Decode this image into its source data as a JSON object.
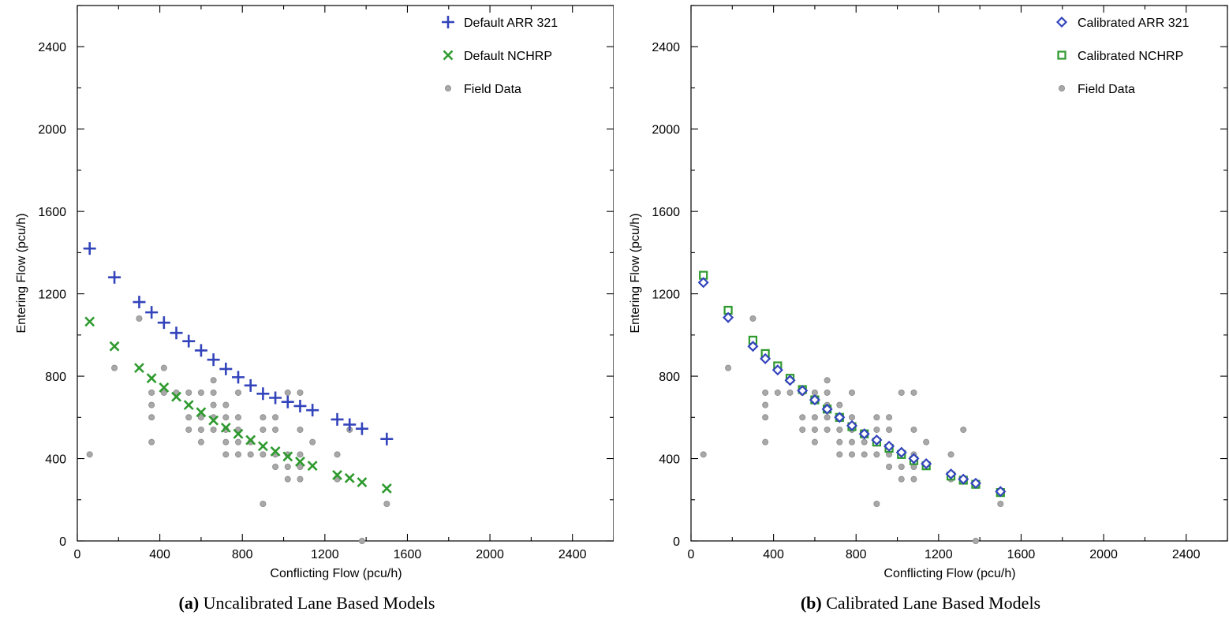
{
  "chart_data": [
    {
      "type": "scatter",
      "xlabel": "Conflicting Flow (pcu/h)",
      "ylabel": "Entering Flow (pcu/h)",
      "xlim": [
        0,
        2600
      ],
      "ylim": [
        0,
        2600
      ],
      "xticks": [
        "0",
        "400",
        "800",
        "1200",
        "1600",
        "2000",
        "2400"
      ],
      "yticks": [
        "0",
        "400",
        "800",
        "1200",
        "1600",
        "2000",
        "2400"
      ],
      "caption_label": "(a)",
      "caption_text": "Uncalibrated Lane Based Models",
      "legend_position": "top-right",
      "series": [
        {
          "name": "Default ARR 321",
          "marker": "plus",
          "color": "#3344bb",
          "points": [
            [
              60,
              1420
            ],
            [
              180,
              1280
            ],
            [
              300,
              1160
            ],
            [
              360,
              1110
            ],
            [
              420,
              1060
            ],
            [
              480,
              1010
            ],
            [
              540,
              970
            ],
            [
              600,
              925
            ],
            [
              660,
              880
            ],
            [
              720,
              835
            ],
            [
              780,
              795
            ],
            [
              840,
              755
            ],
            [
              900,
              715
            ],
            [
              960,
              695
            ],
            [
              1020,
              675
            ],
            [
              1080,
              655
            ],
            [
              1140,
              635
            ],
            [
              1260,
              590
            ],
            [
              1320,
              565
            ],
            [
              1380,
              545
            ],
            [
              1500,
              495
            ]
          ]
        },
        {
          "name": "Default NCHRP",
          "marker": "x",
          "color": "#2e9a2e",
          "points": [
            [
              60,
              1065
            ],
            [
              180,
              945
            ],
            [
              300,
              840
            ],
            [
              360,
              790
            ],
            [
              420,
              745
            ],
            [
              480,
              700
            ],
            [
              540,
              660
            ],
            [
              600,
              625
            ],
            [
              660,
              585
            ],
            [
              720,
              550
            ],
            [
              780,
              520
            ],
            [
              840,
              490
            ],
            [
              900,
              460
            ],
            [
              960,
              435
            ],
            [
              1020,
              410
            ],
            [
              1080,
              385
            ],
            [
              1140,
              365
            ],
            [
              1260,
              320
            ],
            [
              1320,
              305
            ],
            [
              1380,
              285
            ],
            [
              1500,
              255
            ]
          ]
        },
        {
          "name": "Field Data",
          "marker": "circle",
          "color": "#9e9e9e",
          "points": [
            [
              60,
              420
            ],
            [
              180,
              840
            ],
            [
              300,
              1080
            ],
            [
              360,
              720
            ],
            [
              360,
              660
            ],
            [
              360,
              600
            ],
            [
              360,
              480
            ],
            [
              420,
              840
            ],
            [
              420,
              720
            ],
            [
              480,
              720
            ],
            [
              540,
              720
            ],
            [
              540,
              600
            ],
            [
              540,
              540
            ],
            [
              600,
              720
            ],
            [
              600,
              600
            ],
            [
              600,
              540
            ],
            [
              600,
              480
            ],
            [
              660,
              780
            ],
            [
              660,
              720
            ],
            [
              660,
              660
            ],
            [
              660,
              600
            ],
            [
              660,
              540
            ],
            [
              720,
              660
            ],
            [
              720,
              600
            ],
            [
              720,
              540
            ],
            [
              720,
              480
            ],
            [
              720,
              420
            ],
            [
              780,
              720
            ],
            [
              780,
              600
            ],
            [
              780,
              540
            ],
            [
              780,
              480
            ],
            [
              780,
              420
            ],
            [
              840,
              480
            ],
            [
              840,
              420
            ],
            [
              900,
              600
            ],
            [
              900,
              540
            ],
            [
              900,
              420
            ],
            [
              900,
              180
            ],
            [
              960,
              600
            ],
            [
              960,
              540
            ],
            [
              960,
              420
            ],
            [
              960,
              360
            ],
            [
              1020,
              720
            ],
            [
              1020,
              420
            ],
            [
              1020,
              360
            ],
            [
              1020,
              300
            ],
            [
              1080,
              720
            ],
            [
              1080,
              540
            ],
            [
              1080,
              420
            ],
            [
              1080,
              360
            ],
            [
              1080,
              300
            ],
            [
              1140,
              480
            ],
            [
              1260,
              420
            ],
            [
              1260,
              300
            ],
            [
              1320,
              540
            ],
            [
              1380,
              0
            ],
            [
              1500,
              180
            ]
          ]
        }
      ]
    },
    {
      "type": "scatter",
      "xlabel": "Conflicting Flow (pcu/h)",
      "ylabel": "Entering Flow  (pcu/h)",
      "xlim": [
        0,
        2600
      ],
      "ylim": [
        0,
        2600
      ],
      "xticks": [
        "0",
        "400",
        "800",
        "1200",
        "1600",
        "2000",
        "2400"
      ],
      "yticks": [
        "0",
        "400",
        "800",
        "1200",
        "1600",
        "2000",
        "2400"
      ],
      "caption_label": "(b)",
      "caption_text": "Calibrated Lane Based Models",
      "legend_position": "top-right",
      "series": [
        {
          "name": "Calibrated ARR 321",
          "marker": "diamond",
          "color": "#3344bb",
          "points": [
            [
              60,
              1255
            ],
            [
              180,
              1085
            ],
            [
              300,
              945
            ],
            [
              360,
              885
            ],
            [
              420,
              830
            ],
            [
              480,
              780
            ],
            [
              540,
              730
            ],
            [
              600,
              685
            ],
            [
              660,
              640
            ],
            [
              720,
              600
            ],
            [
              780,
              560
            ],
            [
              840,
              520
            ],
            [
              900,
              490
            ],
            [
              960,
              460
            ],
            [
              1020,
              430
            ],
            [
              1080,
              400
            ],
            [
              1140,
              375
            ],
            [
              1260,
              325
            ],
            [
              1320,
              300
            ],
            [
              1380,
              280
            ],
            [
              1500,
              240
            ]
          ]
        },
        {
          "name": "Calibrated NCHRP",
          "marker": "square",
          "color": "#2e9a2e",
          "points": [
            [
              60,
              1290
            ],
            [
              180,
              1120
            ],
            [
              300,
              975
            ],
            [
              360,
              910
            ],
            [
              420,
              850
            ],
            [
              480,
              790
            ],
            [
              540,
              735
            ],
            [
              600,
              685
            ],
            [
              660,
              640
            ],
            [
              720,
              600
            ],
            [
              780,
              555
            ],
            [
              840,
              520
            ],
            [
              900,
              480
            ],
            [
              960,
              450
            ],
            [
              1020,
              420
            ],
            [
              1080,
              390
            ],
            [
              1140,
              365
            ],
            [
              1260,
              315
            ],
            [
              1320,
              295
            ],
            [
              1380,
              275
            ],
            [
              1500,
              235
            ]
          ]
        },
        {
          "name": "Field Data",
          "marker": "circle",
          "color": "#9e9e9e",
          "points": [
            [
              60,
              420
            ],
            [
              180,
              840
            ],
            [
              300,
              1080
            ],
            [
              360,
              720
            ],
            [
              360,
              660
            ],
            [
              360,
              600
            ],
            [
              360,
              480
            ],
            [
              420,
              840
            ],
            [
              420,
              720
            ],
            [
              480,
              720
            ],
            [
              540,
              720
            ],
            [
              540,
              600
            ],
            [
              540,
              540
            ],
            [
              600,
              720
            ],
            [
              600,
              600
            ],
            [
              600,
              540
            ],
            [
              600,
              480
            ],
            [
              660,
              780
            ],
            [
              660,
              720
            ],
            [
              660,
              660
            ],
            [
              660,
              600
            ],
            [
              660,
              540
            ],
            [
              720,
              660
            ],
            [
              720,
              600
            ],
            [
              720,
              540
            ],
            [
              720,
              480
            ],
            [
              720,
              420
            ],
            [
              780,
              720
            ],
            [
              780,
              600
            ],
            [
              780,
              540
            ],
            [
              780,
              480
            ],
            [
              780,
              420
            ],
            [
              840,
              480
            ],
            [
              840,
              420
            ],
            [
              900,
              600
            ],
            [
              900,
              540
            ],
            [
              900,
              420
            ],
            [
              900,
              180
            ],
            [
              960,
              600
            ],
            [
              960,
              540
            ],
            [
              960,
              420
            ],
            [
              960,
              360
            ],
            [
              1020,
              720
            ],
            [
              1020,
              420
            ],
            [
              1020,
              360
            ],
            [
              1020,
              300
            ],
            [
              1080,
              720
            ],
            [
              1080,
              540
            ],
            [
              1080,
              420
            ],
            [
              1080,
              360
            ],
            [
              1080,
              300
            ],
            [
              1140,
              480
            ],
            [
              1260,
              420
            ],
            [
              1260,
              300
            ],
            [
              1320,
              540
            ],
            [
              1380,
              0
            ],
            [
              1500,
              180
            ]
          ]
        }
      ]
    }
  ]
}
